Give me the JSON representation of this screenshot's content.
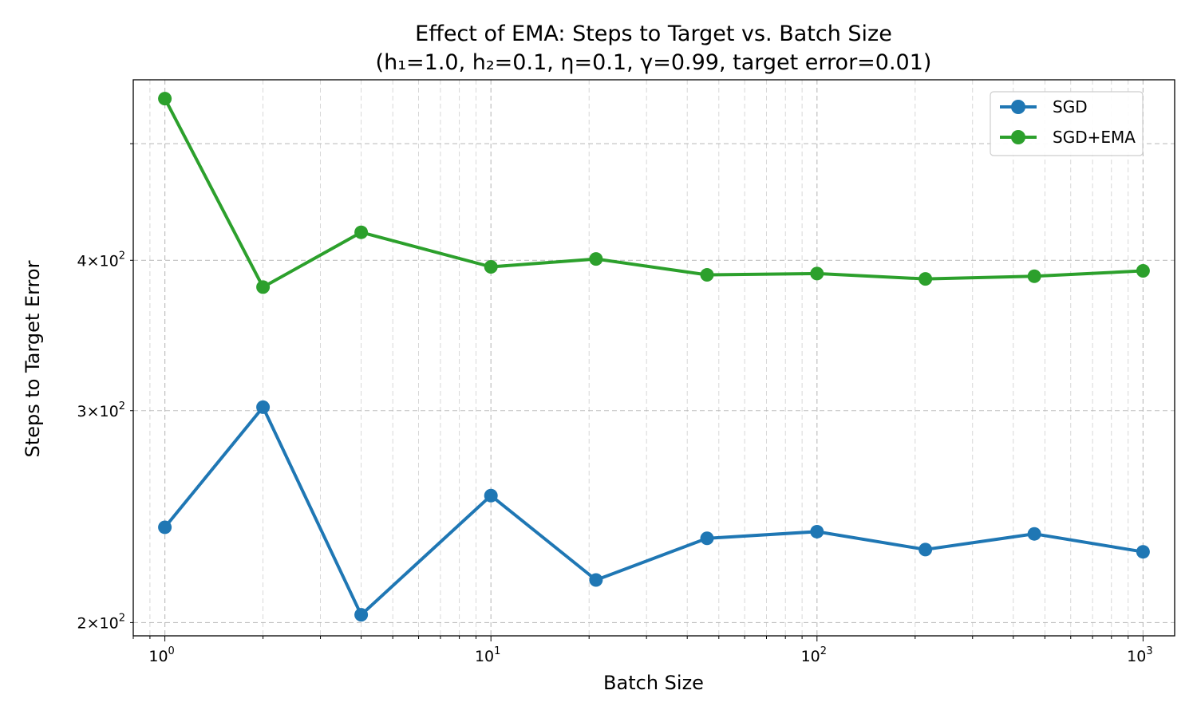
{
  "chart_data": {
    "type": "line",
    "title": "Effect of EMA: Steps to Target vs. Batch Size",
    "subtitle": "(h₁=1.0, h₂=0.1, η=0.1, γ=0.99, target error=0.01)",
    "xlabel": "Batch Size",
    "ylabel": "Steps to Target Error",
    "xscale": "log",
    "yscale": "log",
    "xlim": [
      0.8,
      1250
    ],
    "ylim": [
      195,
      565
    ],
    "x": [
      1,
      2,
      4,
      10,
      21,
      46,
      100,
      215,
      464,
      1000
    ],
    "series": [
      {
        "name": "SGD",
        "color": "#1f77b4",
        "values": [
          240,
          302,
          203,
          255,
          217,
          235,
          238,
          230,
          237,
          229
        ]
      },
      {
        "name": "SGD+EMA",
        "color": "#2ca02c",
        "values": [
          545,
          380,
          422,
          395,
          401,
          389,
          390,
          386,
          388,
          392
        ]
      }
    ],
    "x_ticks": [
      {
        "value": 1,
        "base": "10",
        "exp": "0"
      },
      {
        "value": 10,
        "base": "10",
        "exp": "1"
      },
      {
        "value": 100,
        "base": "10",
        "exp": "2"
      },
      {
        "value": 1000,
        "base": "10",
        "exp": "3"
      }
    ],
    "y_ticks": [
      {
        "value": 200,
        "mant": "2",
        "base": "10",
        "exp": "2"
      },
      {
        "value": 300,
        "mant": "3",
        "base": "10",
        "exp": "2"
      },
      {
        "value": 400,
        "mant": "4",
        "base": "10",
        "exp": "2"
      }
    ],
    "y_minor_extra": [
      500
    ],
    "grid": true,
    "legend": "top-right"
  }
}
